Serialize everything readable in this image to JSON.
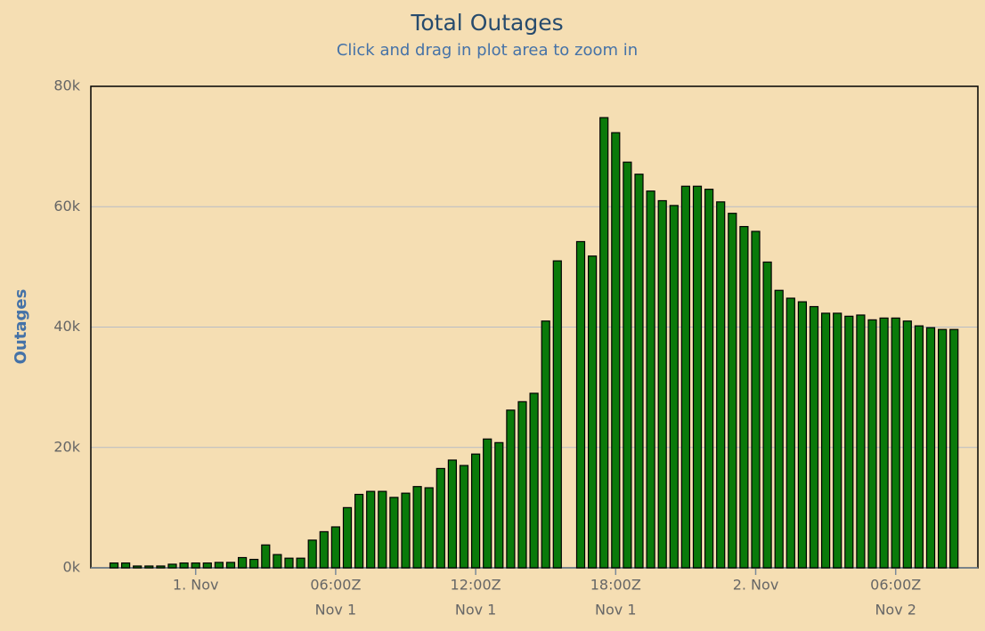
{
  "chart_data": {
    "type": "bar",
    "title": "Total Outages",
    "subtitle": "Click and drag in plot area to zoom in",
    "y_label": "Outages",
    "categories": [
      null,
      null,
      null,
      null,
      null,
      null,
      null,
      "1. Nov",
      null,
      null,
      null,
      null,
      null,
      null,
      null,
      null,
      null,
      null,
      null,
      "06:00Z",
      null,
      null,
      null,
      null,
      null,
      null,
      null,
      null,
      null,
      null,
      null,
      "12:00Z",
      null,
      null,
      null,
      null,
      null,
      null,
      null,
      null,
      null,
      null,
      null,
      "18:00Z",
      null,
      null,
      null,
      null,
      null,
      null,
      null,
      null,
      null,
      null,
      null,
      "2. Nov",
      null,
      null,
      null,
      null,
      null,
      null,
      null,
      null,
      null,
      null,
      null,
      "06:00Z",
      null,
      null,
      null,
      null,
      null
    ],
    "category_sublabels": [
      null,
      null,
      null,
      null,
      null,
      null,
      null,
      null,
      null,
      null,
      null,
      null,
      null,
      null,
      null,
      null,
      null,
      null,
      null,
      "Nov 1",
      null,
      null,
      null,
      null,
      null,
      null,
      null,
      null,
      null,
      null,
      null,
      "Nov 1",
      null,
      null,
      null,
      null,
      null,
      null,
      null,
      null,
      null,
      null,
      null,
      "Nov 1",
      null,
      null,
      null,
      null,
      null,
      null,
      null,
      null,
      null,
      null,
      null,
      null,
      null,
      null,
      null,
      null,
      null,
      null,
      null,
      null,
      null,
      null,
      null,
      "Nov 2",
      null,
      null,
      null,
      null,
      null
    ],
    "values": [
      800,
      800,
      300,
      300,
      300,
      600,
      800,
      800,
      800,
      900,
      900,
      1700,
      1400,
      3800,
      2200,
      1600,
      1600,
      4600,
      6000,
      6800,
      10000,
      12200,
      12700,
      12700,
      11700,
      12400,
      13500,
      13300,
      16500,
      17900,
      17000,
      18900,
      21400,
      20800,
      26200,
      27600,
      29000,
      41000,
      51000,
      null,
      54200,
      51800,
      74800,
      72300,
      67400,
      65400,
      62600,
      61000,
      60200,
      63400,
      63400,
      62900,
      60800,
      58900,
      56700,
      55900,
      50800,
      46100,
      44800,
      44200,
      43400,
      42300,
      42300,
      41800,
      42000,
      41200,
      41500,
      41500,
      41000,
      40200,
      39900,
      39600,
      39600
    ],
    "color": "#0a7a0a",
    "ylim": [
      0,
      80000
    ],
    "yticks": [
      {
        "value": 0,
        "label": "0k"
      },
      {
        "value": 20000,
        "label": "20k"
      },
      {
        "value": 40000,
        "label": "40k"
      },
      {
        "value": 60000,
        "label": "60k"
      },
      {
        "value": 80000,
        "label": "80k"
      }
    ],
    "grid": true
  }
}
